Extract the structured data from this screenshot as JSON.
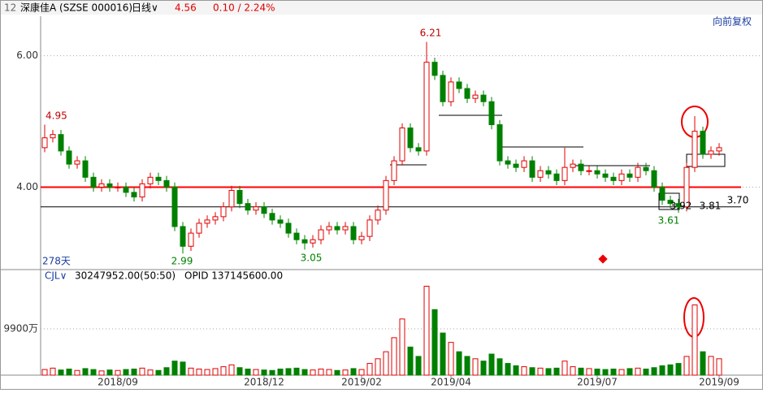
{
  "header": {
    "code": "12",
    "name": "深康佳A (SZSE 000016)",
    "period": "日线∨",
    "price": "4.56",
    "change": "0.10 / 2.24%",
    "adjust": "向前复权",
    "days": "278天"
  },
  "volume_header": {
    "name": "CJL∨",
    "value": "30247952.00(50:50)",
    "opid": "OPID 137145600.00"
  },
  "annotations": [
    "6.21",
    "2.99",
    "3.05",
    "3.61",
    "4.95",
    "3.92",
    "3.81",
    "3.70"
  ],
  "chart_data": [
    {
      "type": "candlestick",
      "categories": [
        null,
        null,
        null,
        null,
        null,
        null,
        null,
        null,
        null,
        "2018/09",
        null,
        null,
        null,
        null,
        null,
        null,
        null,
        null,
        null,
        null,
        null,
        null,
        null,
        null,
        null,
        null,
        null,
        "2018/12",
        null,
        null,
        null,
        null,
        null,
        null,
        null,
        null,
        null,
        null,
        null,
        "2019/02",
        null,
        null,
        null,
        null,
        null,
        null,
        null,
        null,
        null,
        null,
        "2019/04",
        null,
        null,
        null,
        null,
        null,
        null,
        null,
        null,
        null,
        null,
        null,
        null,
        null,
        null,
        null,
        null,
        null,
        "2019/07",
        null,
        null,
        null,
        null,
        null,
        null,
        null,
        null,
        null,
        null,
        null,
        null,
        null,
        null,
        "2019/09"
      ],
      "open": [
        4.6,
        4.75,
        4.8,
        4.55,
        4.35,
        4.4,
        4.15,
        4.0,
        4.05,
        4.0,
        4.0,
        3.92,
        3.85,
        4.05,
        4.15,
        4.1,
        4.0,
        3.4,
        3.1,
        3.3,
        3.45,
        3.5,
        3.55,
        3.7,
        3.95,
        3.75,
        3.65,
        3.7,
        3.6,
        3.5,
        3.45,
        3.3,
        3.2,
        3.15,
        3.2,
        3.35,
        3.4,
        3.35,
        3.4,
        3.2,
        3.25,
        3.5,
        3.65,
        4.1,
        4.4,
        4.9,
        4.6,
        4.55,
        5.9,
        5.7,
        5.3,
        5.6,
        5.5,
        5.35,
        5.4,
        5.3,
        4.95,
        4.4,
        4.35,
        4.3,
        4.4,
        4.15,
        4.25,
        4.2,
        4.1,
        4.3,
        4.35,
        4.25,
        4.25,
        4.2,
        4.15,
        4.1,
        4.2,
        4.15,
        4.3,
        4.25,
        4.0,
        3.8,
        3.75,
        3.7,
        4.3,
        4.85,
        4.5,
        4.55
      ],
      "high": [
        4.95,
        4.87,
        4.87,
        4.62,
        4.47,
        4.47,
        4.22,
        4.12,
        4.12,
        4.07,
        4.07,
        3.99,
        4.12,
        4.22,
        4.22,
        4.17,
        4.07,
        3.47,
        3.37,
        3.52,
        3.57,
        3.62,
        3.77,
        4.02,
        4.02,
        3.82,
        3.77,
        3.77,
        3.67,
        3.57,
        3.52,
        3.37,
        3.27,
        3.27,
        3.42,
        3.47,
        3.47,
        3.47,
        3.47,
        3.32,
        3.57,
        3.72,
        4.17,
        4.47,
        4.97,
        4.97,
        4.67,
        6.21,
        5.97,
        5.77,
        5.67,
        5.67,
        5.57,
        5.47,
        5.47,
        5.37,
        5.02,
        4.47,
        4.42,
        4.47,
        4.47,
        4.32,
        4.32,
        4.27,
        4.6,
        4.42,
        4.42,
        4.32,
        4.32,
        4.27,
        4.22,
        4.27,
        4.27,
        4.37,
        4.37,
        4.32,
        4.07,
        3.87,
        3.82,
        4.37,
        5.08,
        4.92,
        4.62,
        4.67
      ],
      "low": [
        4.53,
        4.68,
        4.48,
        4.28,
        4.28,
        4.08,
        3.93,
        3.93,
        3.93,
        3.93,
        3.85,
        3.78,
        3.78,
        3.98,
        4.03,
        3.93,
        3.33,
        2.99,
        3.03,
        3.23,
        3.38,
        3.43,
        3.48,
        3.63,
        3.68,
        3.58,
        3.58,
        3.53,
        3.43,
        3.38,
        3.23,
        3.13,
        3.05,
        3.08,
        3.13,
        3.28,
        3.28,
        3.28,
        3.13,
        3.13,
        3.18,
        3.43,
        3.58,
        4.03,
        4.33,
        4.53,
        4.48,
        4.48,
        5.63,
        5.23,
        5.23,
        5.43,
        5.28,
        5.28,
        5.23,
        4.88,
        4.33,
        4.28,
        4.23,
        4.23,
        4.08,
        4.08,
        4.13,
        4.03,
        4.03,
        4.23,
        4.18,
        4.18,
        4.13,
        4.08,
        4.03,
        4.03,
        4.08,
        4.08,
        4.18,
        3.93,
        3.73,
        3.68,
        3.61,
        3.63,
        4.23,
        4.43,
        4.43,
        4.48
      ],
      "close": [
        4.75,
        4.8,
        4.55,
        4.35,
        4.4,
        4.15,
        4.0,
        4.05,
        4.0,
        4.0,
        3.92,
        3.85,
        4.05,
        4.15,
        4.1,
        4.0,
        3.4,
        3.1,
        3.3,
        3.45,
        3.5,
        3.55,
        3.7,
        3.95,
        3.75,
        3.65,
        3.7,
        3.6,
        3.5,
        3.45,
        3.3,
        3.2,
        3.15,
        3.2,
        3.35,
        3.4,
        3.35,
        3.4,
        3.2,
        3.25,
        3.5,
        3.65,
        4.1,
        4.4,
        4.9,
        4.6,
        4.55,
        5.9,
        5.7,
        5.3,
        5.6,
        5.5,
        5.35,
        5.4,
        5.3,
        4.95,
        4.4,
        4.35,
        4.3,
        4.4,
        4.15,
        4.25,
        4.2,
        4.1,
        4.3,
        4.35,
        4.25,
        4.25,
        4.2,
        4.15,
        4.1,
        4.2,
        4.15,
        4.3,
        4.25,
        4.0,
        3.8,
        3.75,
        3.7,
        4.3,
        4.85,
        4.5,
        4.55,
        4.6
      ],
      "up_color": "#e00000",
      "down_color": "#008000",
      "ylim": [
        2.77,
        6.6
      ],
      "yticks": [
        {
          "value": 4,
          "label": "4.00"
        },
        {
          "value": 6,
          "label": "6.00"
        }
      ],
      "ref_lines": [
        {
          "value": 4.0,
          "color": "#ff0000"
        },
        {
          "value": 3.7,
          "color": "#000000"
        }
      ]
    },
    {
      "type": "volume",
      "values": [
        1200,
        1500,
        1100,
        1300,
        1000,
        1400,
        1200,
        900,
        1100,
        1000,
        1200,
        1300,
        1500,
        1100,
        1000,
        1600,
        3000,
        2800,
        1500,
        1300,
        1200,
        1400,
        1800,
        2200,
        1600,
        1300,
        1200,
        1100,
        1000,
        1300,
        1400,
        1500,
        1200,
        1100,
        1300,
        1200,
        1000,
        1100,
        1400,
        1200,
        2500,
        3500,
        5000,
        8000,
        12000,
        6000,
        4000,
        19000,
        14000,
        9000,
        7000,
        5000,
        4000,
        3500,
        3000,
        4500,
        3500,
        2500,
        2000,
        1800,
        1600,
        1500,
        1400,
        1500,
        3000,
        1800,
        1500,
        1400,
        1300,
        1200,
        1300,
        1200,
        1400,
        1500,
        1300,
        1600,
        2000,
        2200,
        2500,
        4000,
        15000,
        5000,
        4000,
        3500
      ],
      "ylim": [
        0,
        20300
      ],
      "yticks": [
        {
          "value": 9900,
          "label": "9900万"
        }
      ]
    }
  ]
}
